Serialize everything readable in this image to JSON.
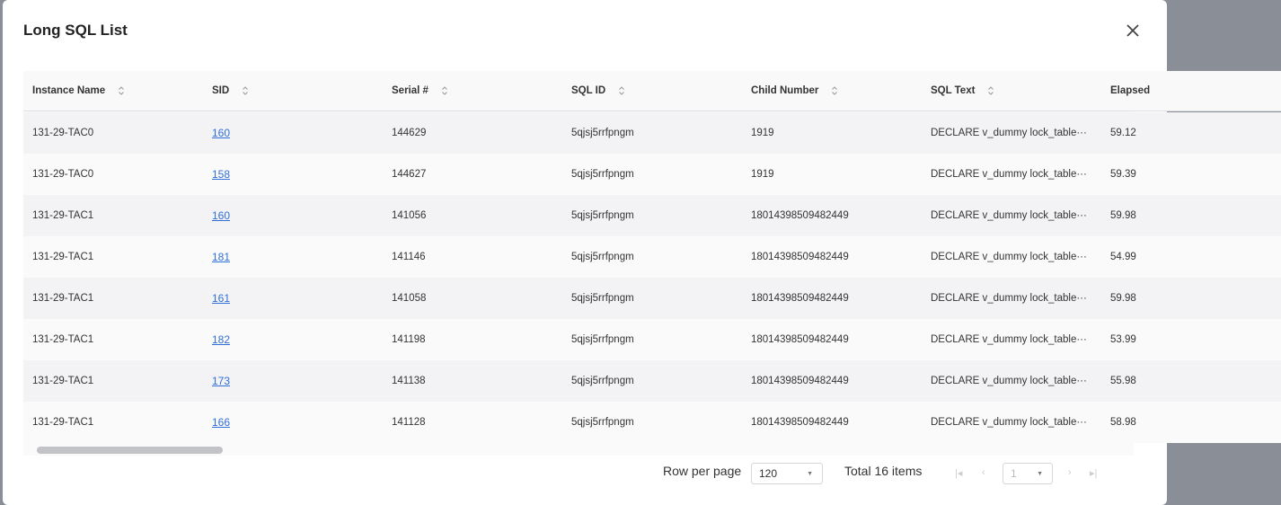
{
  "dialog": {
    "title": "Long SQL List"
  },
  "columns": [
    "Instance Name",
    "SID",
    "Serial #",
    "SQL ID",
    "Child Number",
    "SQL Text",
    "Elapsed"
  ],
  "rows": [
    {
      "instance": "131-29-TAC0",
      "sid": "160",
      "serial": "144629",
      "sql_id": "5qjsj5rrfpngm",
      "child": "1919",
      "text": "DECLARE v_dummy lock_table···",
      "elapsed": "59.12"
    },
    {
      "instance": "131-29-TAC0",
      "sid": "158",
      "serial": "144627",
      "sql_id": "5qjsj5rrfpngm",
      "child": "1919",
      "text": "DECLARE v_dummy lock_table···",
      "elapsed": "59.39"
    },
    {
      "instance": "131-29-TAC1",
      "sid": "160",
      "serial": "141056",
      "sql_id": "5qjsj5rrfpngm",
      "child": "18014398509482449",
      "text": "DECLARE v_dummy lock_table···",
      "elapsed": "59.98"
    },
    {
      "instance": "131-29-TAC1",
      "sid": "181",
      "serial": "141146",
      "sql_id": "5qjsj5rrfpngm",
      "child": "18014398509482449",
      "text": "DECLARE v_dummy lock_table···",
      "elapsed": "54.99"
    },
    {
      "instance": "131-29-TAC1",
      "sid": "161",
      "serial": "141058",
      "sql_id": "5qjsj5rrfpngm",
      "child": "18014398509482449",
      "text": "DECLARE v_dummy lock_table···",
      "elapsed": "59.98"
    },
    {
      "instance": "131-29-TAC1",
      "sid": "182",
      "serial": "141198",
      "sql_id": "5qjsj5rrfpngm",
      "child": "18014398509482449",
      "text": "DECLARE v_dummy lock_table···",
      "elapsed": "53.99"
    },
    {
      "instance": "131-29-TAC1",
      "sid": "173",
      "serial": "141138",
      "sql_id": "5qjsj5rrfpngm",
      "child": "18014398509482449",
      "text": "DECLARE v_dummy lock_table···",
      "elapsed": "55.98"
    },
    {
      "instance": "131-29-TAC1",
      "sid": "166",
      "serial": "141128",
      "sql_id": "5qjsj5rrfpngm",
      "child": "18014398509482449",
      "text": "DECLARE v_dummy lock_table···",
      "elapsed": "58.98"
    }
  ],
  "pagination": {
    "rows_label": "Row per page",
    "rows_value": "120",
    "total": "Total 16 items",
    "page": "1"
  },
  "colors": {
    "link": "#2f6fd6",
    "row_alt": "#f3f3f5"
  }
}
